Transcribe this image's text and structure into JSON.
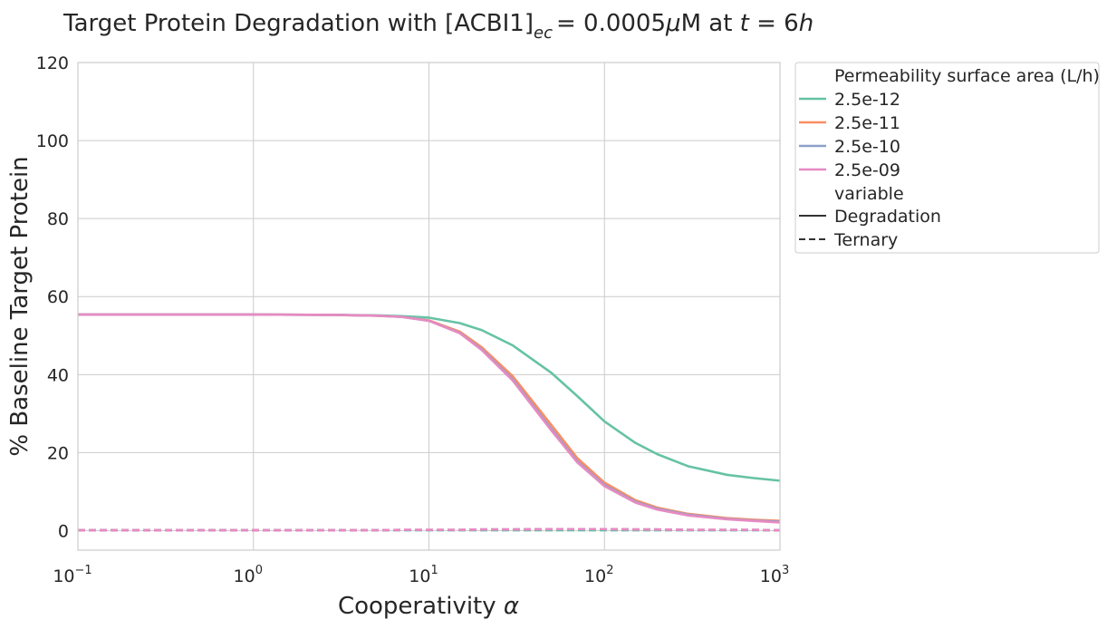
{
  "chart_data": {
    "type": "line",
    "title_prefix": "Target Protein Degradation with [ACBI1]",
    "title_sub": "ec",
    "title_mid": "= 0.0005",
    "title_mu": "μ",
    "title_unit": "M at ",
    "title_t": "t",
    "title_eq": " = 6",
    "title_h": "h",
    "xlabel": "Cooperativity ",
    "xlabel_sym": "α",
    "ylabel": "% Baseline Target Protein",
    "xscale": "log",
    "xlim": [
      0.1,
      1000
    ],
    "ylim": [
      -5,
      120
    ],
    "yticks": [
      0,
      20,
      40,
      60,
      80,
      100,
      120
    ],
    "xticks": [
      {
        "value": 0.1,
        "base": "10",
        "exp": "−1"
      },
      {
        "value": 1,
        "base": "10",
        "exp": "0"
      },
      {
        "value": 10,
        "base": "10",
        "exp": "1"
      },
      {
        "value": 100,
        "base": "10",
        "exp": "2"
      },
      {
        "value": 1000,
        "base": "10",
        "exp": "3"
      }
    ],
    "grid": true,
    "legend_position": "outside-right-top",
    "legend": {
      "hue_title": "Permeability surface area (L/h)",
      "style_title": "variable",
      "style_items": [
        {
          "label": "Degradation",
          "dash": "solid"
        },
        {
          "label": "Ternary",
          "dash": "dashed"
        }
      ]
    },
    "x": [
      0.1,
      1,
      3,
      5,
      7,
      10,
      15,
      20,
      30,
      50,
      70,
      100,
      150,
      200,
      300,
      500,
      700,
      1000
    ],
    "series": [
      {
        "name": "2.5e-12",
        "color": "#66c2a5",
        "variable": "Degradation",
        "values": [
          55.4,
          55.4,
          55.3,
          55.2,
          55.0,
          54.6,
          53.2,
          51.4,
          47.5,
          40.4,
          34.5,
          28.0,
          22.5,
          19.6,
          16.5,
          14.3,
          13.5,
          12.8
        ]
      },
      {
        "name": "2.5e-11",
        "color": "#fc8d62",
        "variable": "Degradation",
        "values": [
          55.4,
          55.4,
          55.3,
          55.1,
          54.8,
          53.9,
          51.0,
          47.0,
          39.6,
          27.0,
          18.6,
          12.3,
          7.8,
          5.9,
          4.3,
          3.2,
          2.8,
          2.5
        ]
      },
      {
        "name": "2.5e-10",
        "color": "#8da0cb",
        "variable": "Degradation",
        "values": [
          55.4,
          55.4,
          55.3,
          55.1,
          54.8,
          53.8,
          50.7,
          46.5,
          38.8,
          26.0,
          17.8,
          11.7,
          7.4,
          5.6,
          4.1,
          3.0,
          2.6,
          2.3
        ]
      },
      {
        "name": "2.5e-09",
        "color": "#e78ac3",
        "variable": "Degradation",
        "values": [
          55.4,
          55.4,
          55.3,
          55.1,
          54.8,
          53.8,
          50.6,
          46.3,
          38.5,
          25.6,
          17.5,
          11.4,
          7.2,
          5.4,
          3.9,
          2.9,
          2.5,
          2.1
        ]
      },
      {
        "name": "2.5e-12",
        "color": "#66c2a5",
        "variable": "Ternary",
        "values": [
          0.1,
          0.1,
          0.1,
          0.1,
          0.1,
          0.1,
          0.1,
          0.1,
          0.1,
          0.1,
          0.1,
          0.1,
          0.1,
          0.1,
          0.1,
          0.1,
          0.1,
          0.1
        ]
      },
      {
        "name": "2.5e-11",
        "color": "#fc8d62",
        "variable": "Ternary",
        "values": [
          0.1,
          0.1,
          0.1,
          0.1,
          0.2,
          0.2,
          0.2,
          0.3,
          0.3,
          0.4,
          0.4,
          0.4,
          0.3,
          0.3,
          0.2,
          0.2,
          0.2,
          0.1
        ]
      },
      {
        "name": "2.5e-10",
        "color": "#8da0cb",
        "variable": "Ternary",
        "values": [
          0.1,
          0.1,
          0.1,
          0.1,
          0.2,
          0.2,
          0.2,
          0.3,
          0.3,
          0.4,
          0.4,
          0.4,
          0.3,
          0.3,
          0.2,
          0.2,
          0.2,
          0.1
        ]
      },
      {
        "name": "2.5e-09",
        "color": "#e78ac3",
        "variable": "Ternary",
        "values": [
          0.1,
          0.1,
          0.1,
          0.1,
          0.2,
          0.2,
          0.2,
          0.3,
          0.3,
          0.4,
          0.4,
          0.4,
          0.3,
          0.3,
          0.2,
          0.2,
          0.2,
          0.1
        ]
      }
    ]
  }
}
